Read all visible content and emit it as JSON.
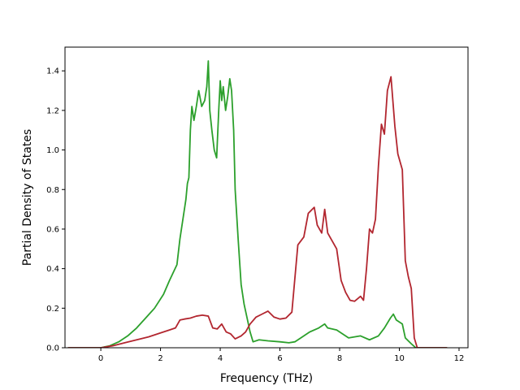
{
  "chart_data": {
    "type": "line",
    "title": "",
    "xlabel": "Frequency (THz)",
    "ylabel": "Partial Density of States",
    "xlim": [
      -1.2,
      12.3
    ],
    "ylim": [
      0.0,
      1.52
    ],
    "xticks": [
      0,
      2,
      4,
      6,
      8,
      10,
      12
    ],
    "yticks": [
      0.0,
      0.2,
      0.4,
      0.6,
      0.8,
      1.0,
      1.2,
      1.4
    ],
    "xtick_labels": [
      "0",
      "2",
      "4",
      "6",
      "8",
      "10",
      "12"
    ],
    "ytick_labels": [
      "0.0",
      "0.2",
      "0.4",
      "0.6",
      "0.8",
      "1.0",
      "1.2",
      "1.4"
    ],
    "grid": false,
    "legend": "none",
    "series": [
      {
        "color": "#2ca02c",
        "points": [
          [
            -1.1,
            0.0
          ],
          [
            0.0,
            0.0
          ],
          [
            0.3,
            0.01
          ],
          [
            0.6,
            0.03
          ],
          [
            0.9,
            0.06
          ],
          [
            1.2,
            0.1
          ],
          [
            1.5,
            0.15
          ],
          [
            1.8,
            0.2
          ],
          [
            2.1,
            0.27
          ],
          [
            2.3,
            0.34
          ],
          [
            2.55,
            0.42
          ],
          [
            2.65,
            0.55
          ],
          [
            2.75,
            0.65
          ],
          [
            2.85,
            0.75
          ],
          [
            2.9,
            0.83
          ],
          [
            2.95,
            0.86
          ],
          [
            3.0,
            1.1
          ],
          [
            3.05,
            1.22
          ],
          [
            3.12,
            1.15
          ],
          [
            3.2,
            1.22
          ],
          [
            3.28,
            1.3
          ],
          [
            3.38,
            1.22
          ],
          [
            3.48,
            1.25
          ],
          [
            3.55,
            1.32
          ],
          [
            3.6,
            1.45
          ],
          [
            3.65,
            1.2
          ],
          [
            3.72,
            1.1
          ],
          [
            3.8,
            1.0
          ],
          [
            3.88,
            0.96
          ],
          [
            3.95,
            1.2
          ],
          [
            4.0,
            1.35
          ],
          [
            4.05,
            1.25
          ],
          [
            4.1,
            1.32
          ],
          [
            4.18,
            1.2
          ],
          [
            4.25,
            1.27
          ],
          [
            4.32,
            1.36
          ],
          [
            4.38,
            1.3
          ],
          [
            4.45,
            1.1
          ],
          [
            4.5,
            0.8
          ],
          [
            4.6,
            0.55
          ],
          [
            4.7,
            0.32
          ],
          [
            4.8,
            0.22
          ],
          [
            4.9,
            0.15
          ],
          [
            5.0,
            0.08
          ],
          [
            5.1,
            0.03
          ],
          [
            5.3,
            0.04
          ],
          [
            5.6,
            0.035
          ],
          [
            6.0,
            0.03
          ],
          [
            6.3,
            0.025
          ],
          [
            6.5,
            0.03
          ],
          [
            6.7,
            0.05
          ],
          [
            7.0,
            0.08
          ],
          [
            7.3,
            0.1
          ],
          [
            7.5,
            0.12
          ],
          [
            7.6,
            0.1
          ],
          [
            7.9,
            0.09
          ],
          [
            8.1,
            0.07
          ],
          [
            8.3,
            0.05
          ],
          [
            8.7,
            0.06
          ],
          [
            9.0,
            0.04
          ],
          [
            9.3,
            0.06
          ],
          [
            9.5,
            0.1
          ],
          [
            9.7,
            0.15
          ],
          [
            9.8,
            0.17
          ],
          [
            9.9,
            0.14
          ],
          [
            10.1,
            0.12
          ],
          [
            10.2,
            0.05
          ],
          [
            10.4,
            0.02
          ],
          [
            10.55,
            0.0
          ],
          [
            11.6,
            0.0
          ]
        ]
      },
      {
        "color": "#b2262f",
        "points": [
          [
            -1.1,
            0.0
          ],
          [
            0.0,
            0.0
          ],
          [
            0.4,
            0.01
          ],
          [
            0.8,
            0.025
          ],
          [
            1.2,
            0.04
          ],
          [
            1.6,
            0.055
          ],
          [
            2.0,
            0.075
          ],
          [
            2.3,
            0.09
          ],
          [
            2.5,
            0.1
          ],
          [
            2.65,
            0.14
          ],
          [
            2.8,
            0.145
          ],
          [
            3.0,
            0.15
          ],
          [
            3.2,
            0.16
          ],
          [
            3.4,
            0.165
          ],
          [
            3.6,
            0.16
          ],
          [
            3.75,
            0.1
          ],
          [
            3.9,
            0.095
          ],
          [
            4.05,
            0.12
          ],
          [
            4.2,
            0.08
          ],
          [
            4.35,
            0.07
          ],
          [
            4.5,
            0.045
          ],
          [
            4.7,
            0.06
          ],
          [
            4.85,
            0.08
          ],
          [
            5.0,
            0.12
          ],
          [
            5.2,
            0.155
          ],
          [
            5.4,
            0.17
          ],
          [
            5.6,
            0.185
          ],
          [
            5.8,
            0.155
          ],
          [
            6.0,
            0.145
          ],
          [
            6.2,
            0.15
          ],
          [
            6.4,
            0.18
          ],
          [
            6.5,
            0.35
          ],
          [
            6.6,
            0.52
          ],
          [
            6.8,
            0.56
          ],
          [
            6.95,
            0.68
          ],
          [
            7.15,
            0.71
          ],
          [
            7.25,
            0.62
          ],
          [
            7.4,
            0.58
          ],
          [
            7.5,
            0.7
          ],
          [
            7.6,
            0.58
          ],
          [
            7.75,
            0.54
          ],
          [
            7.9,
            0.5
          ],
          [
            8.05,
            0.34
          ],
          [
            8.2,
            0.28
          ],
          [
            8.35,
            0.24
          ],
          [
            8.5,
            0.235
          ],
          [
            8.7,
            0.26
          ],
          [
            8.8,
            0.24
          ],
          [
            8.9,
            0.4
          ],
          [
            9.0,
            0.6
          ],
          [
            9.1,
            0.58
          ],
          [
            9.2,
            0.65
          ],
          [
            9.3,
            0.92
          ],
          [
            9.4,
            1.13
          ],
          [
            9.5,
            1.08
          ],
          [
            9.6,
            1.3
          ],
          [
            9.72,
            1.37
          ],
          [
            9.85,
            1.12
          ],
          [
            9.95,
            0.98
          ],
          [
            10.1,
            0.9
          ],
          [
            10.2,
            0.44
          ],
          [
            10.3,
            0.36
          ],
          [
            10.4,
            0.3
          ],
          [
            10.5,
            0.05
          ],
          [
            10.6,
            0.0
          ],
          [
            11.6,
            0.0
          ]
        ]
      }
    ]
  }
}
